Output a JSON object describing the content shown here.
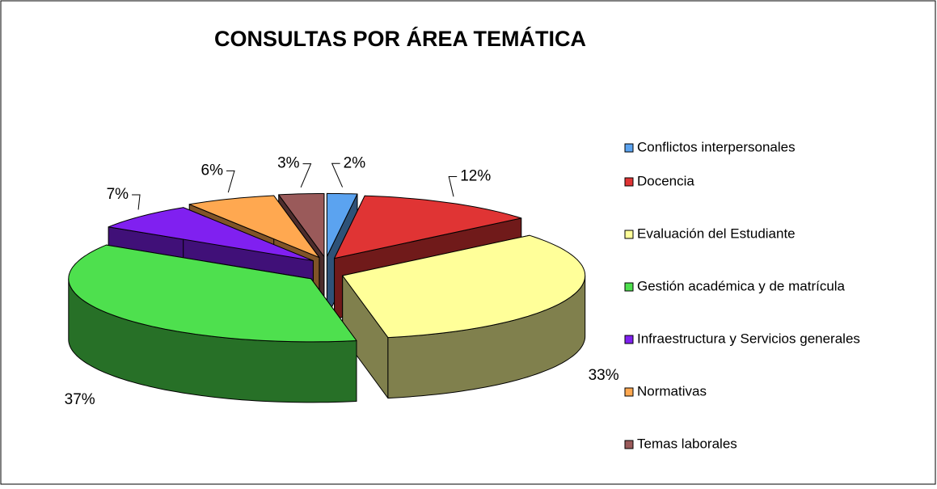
{
  "chart_data": {
    "type": "pie3d",
    "title": "CONSULTAS POR ÁREA TEMÁTICA",
    "categories": [
      "Conflictos interpersonales",
      "Docencia",
      "Evaluación del Estudiante",
      "Gestión académica y de matrícula",
      "Infraestructura y Servicios generales",
      "Normativas",
      "Temas laborales"
    ],
    "values": [
      2,
      12,
      33,
      37,
      7,
      6,
      3
    ],
    "value_labels": [
      "2%",
      "12%",
      "33%",
      "37%",
      "7%",
      "6%",
      "3%"
    ],
    "colors": [
      "#5ba3f0",
      "#e03434",
      "#ffff99",
      "#4ee04e",
      "#8020f0",
      "#ffa850",
      "#9a5a5a"
    ],
    "legend": "right"
  }
}
